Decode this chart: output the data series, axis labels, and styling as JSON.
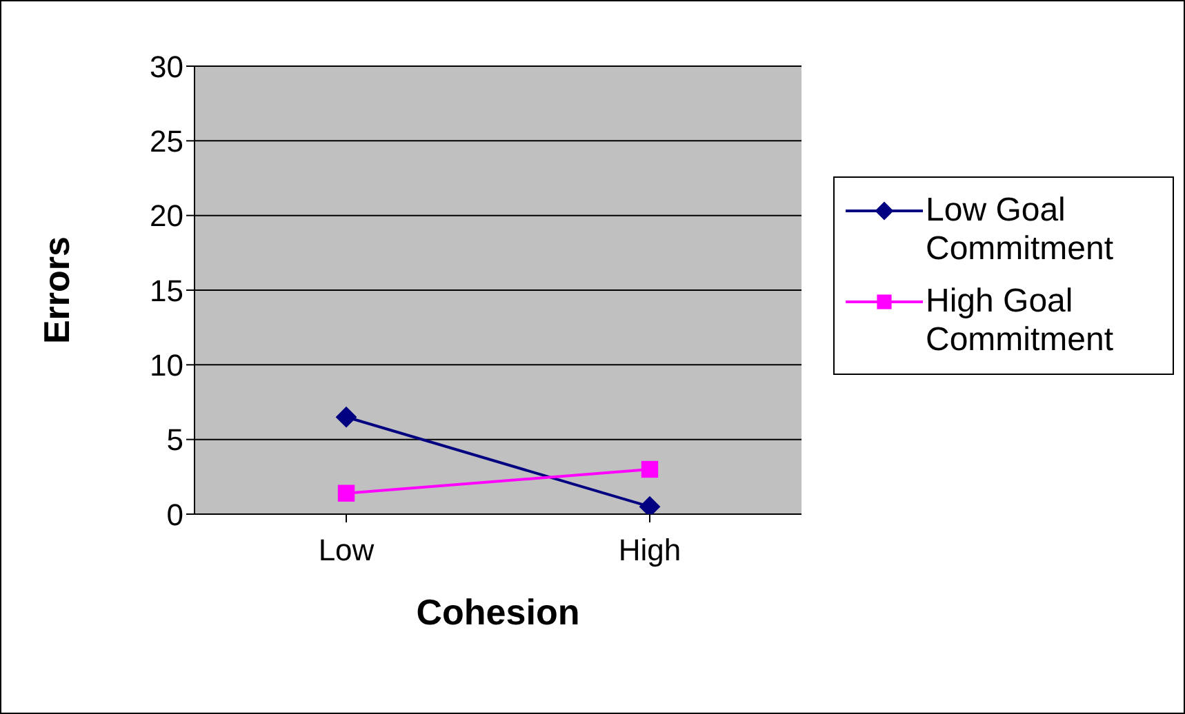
{
  "chart_data": {
    "type": "line",
    "xlabel": "Cohesion",
    "ylabel": "Errors",
    "categories": [
      "Low",
      "High"
    ],
    "series": [
      {
        "name": "Low Goal Commitment",
        "color": "#000080",
        "values": [
          6.5,
          0.5
        ],
        "marker": "diamond"
      },
      {
        "name": "High Goal Commitment",
        "color": "#ff00ff",
        "values": [
          1.4,
          3
        ],
        "marker": "square"
      }
    ],
    "ylim": [
      0,
      30
    ],
    "yticks": [
      0,
      5,
      10,
      15,
      20,
      25,
      30
    ],
    "grid": "y",
    "legend": "right"
  }
}
